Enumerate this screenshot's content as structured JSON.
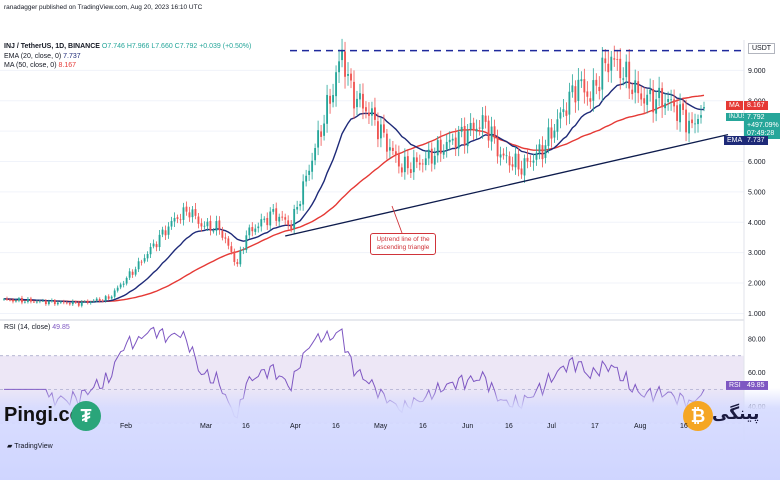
{
  "header": {
    "published": "ranadagger published on TradingView.com, Aug 20, 2023 16:10 UTC",
    "symbol_line": "INJ / TetherUS, 1D, BINANCE",
    "ohlc": "O7.746  H7.966  L7.660  C7.792  +0.039 (+0.50%)",
    "ema_label": "EMA (20, close, 0)",
    "ema_value": "7.737",
    "ma_label": "MA (50, close, 0)",
    "ma_value": "8.167",
    "currency": "USDT",
    "rsi_label": "RSI (14, close)",
    "rsi_value": "49.85"
  },
  "badges": {
    "ma": "MA",
    "ma_val": "8.167",
    "sym": "INJUSDT",
    "sym_val": "7.792",
    "sym_chg": "+497.09%",
    "sym_time": "07:49:28",
    "ema": "EMA",
    "ema_val": "7.737",
    "rsi": "RSI",
    "rsi_val": "49.85"
  },
  "annotation": {
    "line1": "Uptrend line of the",
    "line2": "ascending triangle"
  },
  "brand": {
    "left": "Pingi.co",
    "right": "پینگی",
    "footer": "TradingView"
  },
  "colors": {
    "up": "#26a69a",
    "down": "#ef5350",
    "ema": "#1e2a78",
    "ma": "#e53935",
    "trend": "#0d1b4c",
    "rsi": "#7e57c2",
    "rsi_band": "#ede7f6"
  },
  "chart_data": {
    "type": "candlestick",
    "title": "INJ / TetherUS, 1D, BINANCE",
    "ylabel": "USDT",
    "price_ticks": [
      "9.000",
      "8.000",
      "7.000",
      "6.000",
      "5.000",
      "4.000",
      "3.000",
      "2.000",
      "1.000"
    ],
    "price_ylim": [
      0.85,
      10.0
    ],
    "rsi_ticks": [
      "80.00",
      "60.00",
      "40.00"
    ],
    "rsi_ylim": [
      20,
      90
    ],
    "x_labels": [
      "Feb",
      "Mar",
      "16",
      "Apr",
      "16",
      "May",
      "16",
      "Jun",
      "16",
      "Jul",
      "17",
      "Aug",
      "16"
    ],
    "days": 235,
    "close_anchors": [
      [
        0,
        1.45
      ],
      [
        25,
        1.33
      ],
      [
        35,
        1.5
      ],
      [
        45,
        2.6
      ],
      [
        52,
        3.5
      ],
      [
        57,
        4.1
      ],
      [
        62,
        4.4
      ],
      [
        66,
        3.9
      ],
      [
        72,
        3.8
      ],
      [
        78,
        2.6
      ],
      [
        81,
        3.6
      ],
      [
        90,
        4.3
      ],
      [
        96,
        3.9
      ],
      [
        103,
        6.1
      ],
      [
        110,
        8.4
      ],
      [
        113,
        9.6
      ],
      [
        116,
        8.3
      ],
      [
        123,
        7.5
      ],
      [
        128,
        6.6
      ],
      [
        133,
        5.8
      ],
      [
        140,
        6.0
      ],
      [
        150,
        6.7
      ],
      [
        157,
        7.1
      ],
      [
        161,
        7.3
      ],
      [
        166,
        6.2
      ],
      [
        173,
        5.8
      ],
      [
        180,
        6.4
      ],
      [
        186,
        7.5
      ],
      [
        192,
        8.6
      ],
      [
        196,
        8.1
      ],
      [
        200,
        9.0
      ],
      [
        203,
        9.4
      ],
      [
        207,
        8.9
      ],
      [
        213,
        8.1
      ],
      [
        222,
        8.0
      ],
      [
        227,
        7.5
      ],
      [
        230,
        7.1
      ],
      [
        232,
        7.5
      ],
      [
        234,
        7.79
      ]
    ],
    "last": {
      "open": 7.746,
      "high": 7.966,
      "low": 7.66,
      "close": 7.792,
      "change": 0.039,
      "change_pct": 0.5
    },
    "indicators": {
      "ema20_last": 7.737,
      "ma50_last": 8.167,
      "rsi14_last": 49.85,
      "resistance": 9.65
    },
    "trendline": {
      "start": [
        94,
        3.55
      ],
      "end": [
        234,
        7.05
      ]
    }
  }
}
